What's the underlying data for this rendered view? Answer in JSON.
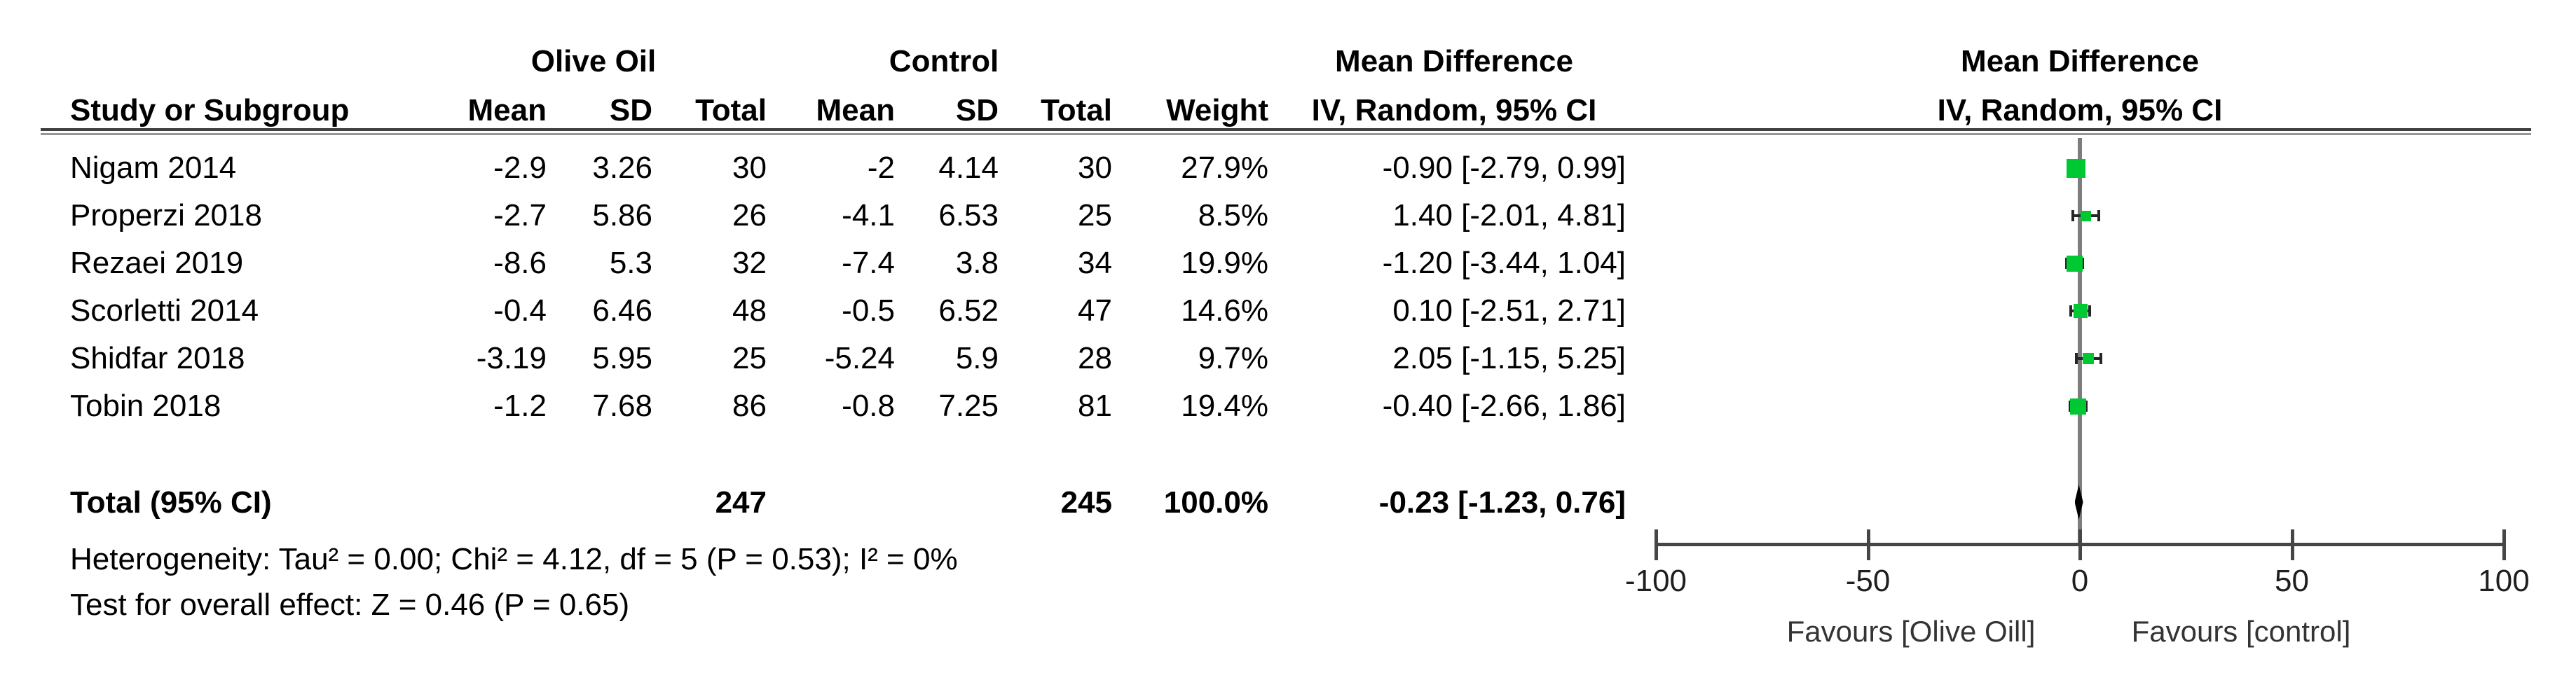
{
  "table": {
    "headers": {
      "group_olive": "Olive Oil",
      "group_control": "Control",
      "group_md_text": "Mean Difference",
      "group_md_plot": "Mean Difference",
      "study": "Study or Subgroup",
      "mean_olive": "Mean",
      "sd_olive": "SD",
      "total_olive": "Total",
      "mean_control": "Mean",
      "sd_control": "SD",
      "total_control": "Total",
      "weight": "Weight",
      "md_sub_text": "IV, Random, 95% CI",
      "md_sub_plot": "IV, Random, 95% CI"
    },
    "rows": [
      {
        "study": "Nigam 2014",
        "oo_mean": "-2.9",
        "oo_sd": "3.26",
        "oo_total": "30",
        "c_mean": "-2",
        "c_sd": "4.14",
        "c_total": "30",
        "weight": "27.9%",
        "md_ci": "-0.90 [-2.79, 0.99]"
      },
      {
        "study": "Properzi 2018",
        "oo_mean": "-2.7",
        "oo_sd": "5.86",
        "oo_total": "26",
        "c_mean": "-4.1",
        "c_sd": "6.53",
        "c_total": "25",
        "weight": "8.5%",
        "md_ci": "1.40 [-2.01, 4.81]"
      },
      {
        "study": "Rezaei 2019",
        "oo_mean": "-8.6",
        "oo_sd": "5.3",
        "oo_total": "32",
        "c_mean": "-7.4",
        "c_sd": "3.8",
        "c_total": "34",
        "weight": "19.9%",
        "md_ci": "-1.20 [-3.44, 1.04]"
      },
      {
        "study": "Scorletti 2014",
        "oo_mean": "-0.4",
        "oo_sd": "6.46",
        "oo_total": "48",
        "c_mean": "-0.5",
        "c_sd": "6.52",
        "c_total": "47",
        "weight": "14.6%",
        "md_ci": "0.10 [-2.51, 2.71]"
      },
      {
        "study": "Shidfar 2018",
        "oo_mean": "-3.19",
        "oo_sd": "5.95",
        "oo_total": "25",
        "c_mean": "-5.24",
        "c_sd": "5.9",
        "c_total": "28",
        "weight": "9.7%",
        "md_ci": "2.05 [-1.15, 5.25]"
      },
      {
        "study": "Tobin 2018",
        "oo_mean": "-1.2",
        "oo_sd": "7.68",
        "oo_total": "86",
        "c_mean": "-0.8",
        "c_sd": "7.25",
        "c_total": "81",
        "weight": "19.4%",
        "md_ci": "-0.40 [-2.66, 1.86]"
      }
    ],
    "total_row": {
      "label": "Total (95% CI)",
      "oo_total": "247",
      "c_total": "245",
      "weight": "100.0%",
      "md_ci": "-0.23 [-1.23, 0.76]"
    },
    "heterogeneity": "Heterogeneity: Tau² = 0.00; Chi² = 4.12, df = 5 (P = 0.53); I² = 0%",
    "overall_effect": "Test for overall effect: Z = 0.46 (P = 0.65)"
  },
  "plot": {
    "favours_left": "Favours [Olive Oill]",
    "favours_right": "Favours [control]",
    "colors": {
      "marker": "#00c832",
      "ci": "#262626",
      "diamond": "#000000",
      "axis": "#464646",
      "zero_line": "#7d7d7d"
    }
  },
  "chart_data": {
    "type": "forest",
    "effect_measure": "Mean Difference, IV, Random, 95% CI",
    "x_range": [
      -100,
      100
    ],
    "axis_ticks": [
      -100,
      -50,
      0,
      50,
      100
    ],
    "studies": [
      {
        "name": "Nigam 2014",
        "md": -0.9,
        "ci_low": -2.79,
        "ci_high": 0.99,
        "weight_pct": 27.9
      },
      {
        "name": "Properzi 2018",
        "md": 1.4,
        "ci_low": -2.01,
        "ci_high": 4.81,
        "weight_pct": 8.5
      },
      {
        "name": "Rezaei 2019",
        "md": -1.2,
        "ci_low": -3.44,
        "ci_high": 1.04,
        "weight_pct": 19.9
      },
      {
        "name": "Scorletti 2014",
        "md": 0.1,
        "ci_low": -2.51,
        "ci_high": 2.71,
        "weight_pct": 14.6
      },
      {
        "name": "Shidfar 2018",
        "md": 2.05,
        "ci_low": -1.15,
        "ci_high": 5.25,
        "weight_pct": 9.7
      },
      {
        "name": "Tobin 2018",
        "md": -0.4,
        "ci_low": -2.66,
        "ci_high": 1.86,
        "weight_pct": 19.4
      }
    ],
    "total": {
      "label": "Total (95% CI)",
      "md": -0.23,
      "ci_low": -1.23,
      "ci_high": 0.76,
      "weight_pct": 100.0
    },
    "heterogeneity": {
      "tau2": 0.0,
      "chi2": 4.12,
      "df": 5,
      "p": 0.53,
      "i2_pct": 0
    },
    "overall_effect": {
      "z": 0.46,
      "p": 0.65
    },
    "favours_left": "Favours [Olive Oill]",
    "favours_right": "Favours [control]"
  }
}
